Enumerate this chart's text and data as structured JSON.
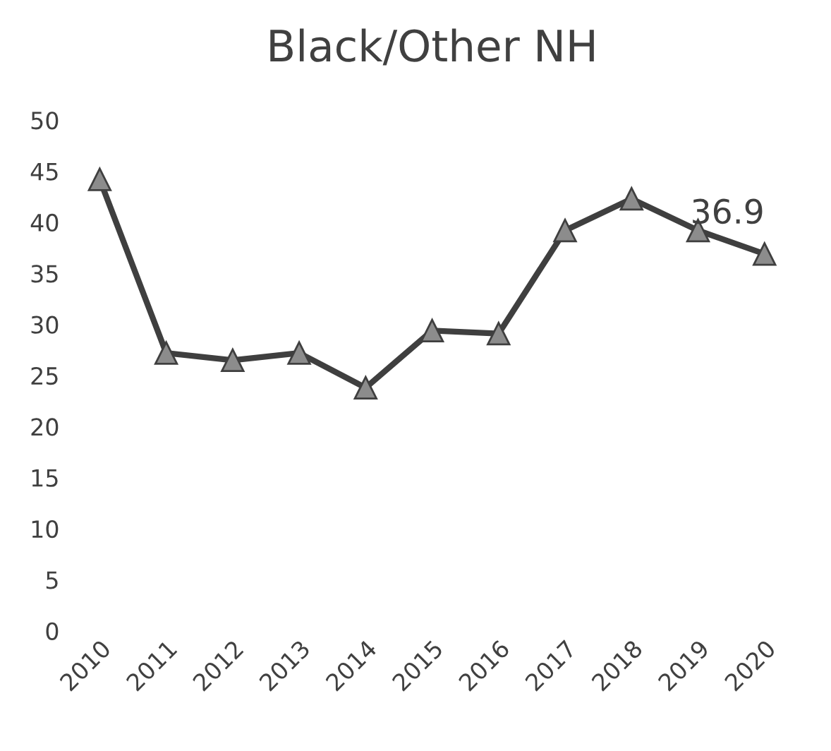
{
  "chart_data": {
    "type": "line",
    "title": "Black/Other NH",
    "categories": [
      "2010",
      "2011",
      "2012",
      "2013",
      "2014",
      "2015",
      "2016",
      "2017",
      "2018",
      "2019",
      "2020"
    ],
    "series": [
      {
        "color": "#3f3f3f",
        "values": [
          44.2,
          27.2,
          26.5,
          27.2,
          23.8,
          29.4,
          29.1,
          39.2,
          42.3,
          39.2,
          36.9
        ],
        "value_labels": [
          null,
          null,
          null,
          null,
          null,
          null,
          null,
          null,
          null,
          null,
          "36.9"
        ]
      }
    ],
    "ylim": [
      0,
      50
    ],
    "yticks": [
      0,
      5,
      10,
      15,
      20,
      25,
      30,
      35,
      40,
      45,
      50
    ],
    "marker": "triangle",
    "line_style": "solid",
    "grid": false,
    "legend": false
  }
}
